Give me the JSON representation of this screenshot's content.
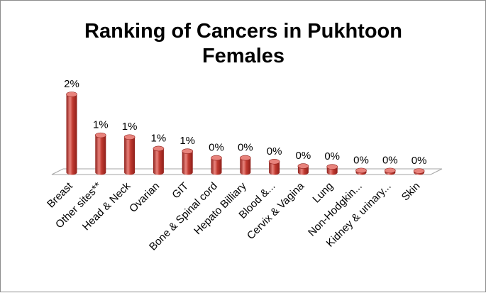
{
  "chart_data": {
    "type": "bar",
    "title_lines": [
      "Ranking of Cancers in Pukhtoon",
      "Females"
    ],
    "categories": [
      "Breast",
      "Other sites**",
      "Head & Neck",
      "Ovarian",
      "GIT",
      "Bone & Spinal cord",
      "Hepato Billiary",
      "Blood &...",
      "Cervix & Vagina",
      "Lung",
      "Non-Hodgkin...",
      "Kidney & urinary...",
      "Skin"
    ],
    "values": [
      2.1,
      1.0,
      0.95,
      0.64,
      0.57,
      0.39,
      0.39,
      0.29,
      0.17,
      0.15,
      0.05,
      0.05,
      0.02
    ],
    "data_labels": [
      "2%",
      "1%",
      "1%",
      "1%",
      "1%",
      "0%",
      "0%",
      "0%",
      "0%",
      "0%",
      "0%",
      "0%",
      "0%"
    ],
    "ylim": [
      0,
      2.1
    ],
    "grid": false,
    "legend": "none",
    "style": "3d-cylinder",
    "colors": {
      "bar": "#c0392f",
      "bar_dark": "#8e1f1a",
      "bar_light": "#e8837c",
      "floor": "#ffffff",
      "floor_edge": "#a6a6a6"
    }
  }
}
